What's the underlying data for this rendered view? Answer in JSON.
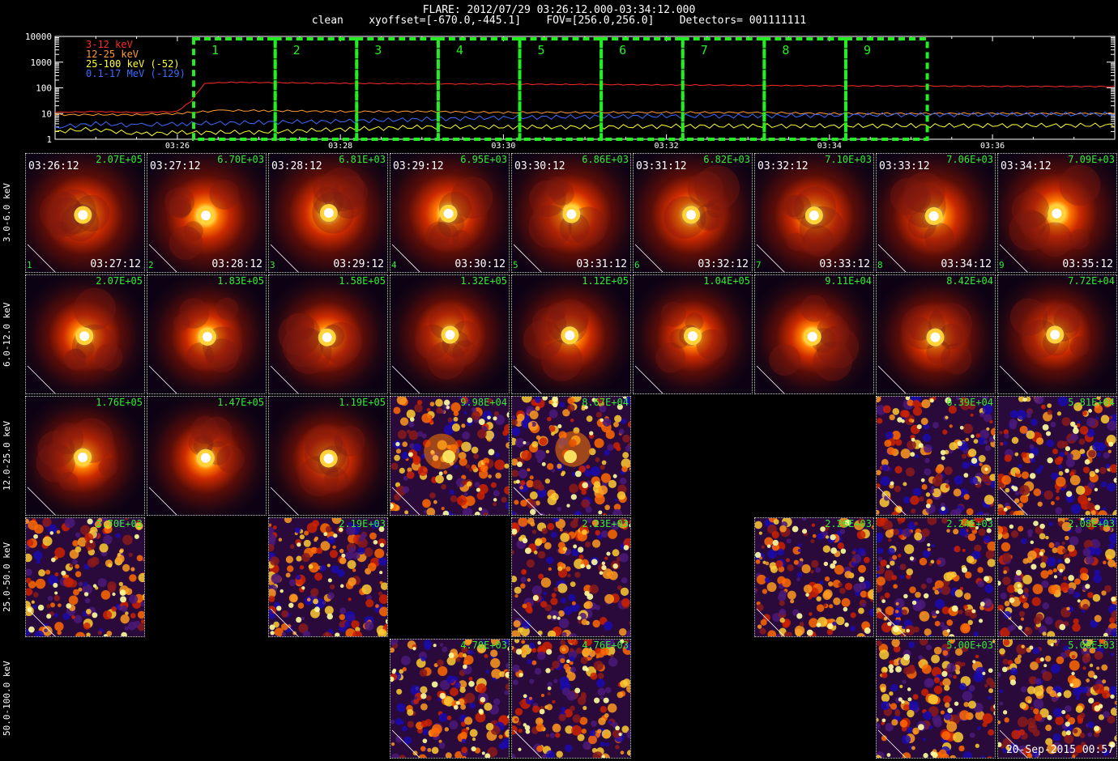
{
  "header": {
    "title": "FLARE: 2012/07/29 03:26:12.000-03:34:12.000",
    "subtitle": "clean    xyoffset=[-670.0,-445.1]    FOV=[256.0,256.0]    Detectors= 001111111"
  },
  "chart_data": [
    {
      "type": "line",
      "yscale": "log",
      "ylim": [
        1,
        10000
      ],
      "yticks": [
        "1",
        "10",
        "100",
        "1000",
        "10000"
      ],
      "xlim": [
        "03:24:30",
        "03:37:30"
      ],
      "xticks": [
        "03:26",
        "03:28",
        "03:30",
        "03:32",
        "03:34",
        "03:36"
      ],
      "series": [
        {
          "name": "3-12 keV",
          "color": "#ff2a2a",
          "x": [
            "03:24:30",
            "03:25:00",
            "03:25:30",
            "03:26:00",
            "03:26:10",
            "03:26:20",
            "03:26:40",
            "03:27:00",
            "03:28:00",
            "03:29:00",
            "03:30:00",
            "03:31:00",
            "03:32:00",
            "03:33:00",
            "03:34:00",
            "03:35:00",
            "03:36:00",
            "03:37:30"
          ],
          "y": [
            11,
            12,
            11,
            12,
            30,
            150,
            165,
            160,
            150,
            145,
            140,
            135,
            130,
            125,
            120,
            118,
            115,
            112
          ]
        },
        {
          "name": "12-25 keV",
          "color": "#ff9c33",
          "x": [
            "03:24:30",
            "03:25:30",
            "03:26:00",
            "03:26:30",
            "03:27:00",
            "03:28:00",
            "03:29:00",
            "03:30:00",
            "03:31:00",
            "03:32:00",
            "03:33:00",
            "03:34:00",
            "03:35:00",
            "03:36:00",
            "03:37:30"
          ],
          "y": [
            9,
            9,
            10,
            13,
            13,
            12,
            12,
            11,
            11,
            11,
            11,
            10,
            10,
            10,
            10
          ]
        },
        {
          "name": "25-100 keV (-52)",
          "color": "#ffff33",
          "x": [
            "03:24:30",
            "03:25:00",
            "03:25:30",
            "03:26:00",
            "03:27:00",
            "03:28:00",
            "03:29:00",
            "03:30:00",
            "03:31:00",
            "03:32:00",
            "03:33:00",
            "03:34:00",
            "03:35:00",
            "03:36:00",
            "03:37:30"
          ],
          "y": [
            2,
            2.5,
            1.6,
            1.8,
            1.9,
            2.4,
            3,
            3,
            3,
            3.2,
            3.3,
            3.3,
            3.4,
            3.4,
            3.5
          ]
        },
        {
          "name": "0.1-17 MeV (-129)",
          "color": "#3d6bff",
          "x": [
            "03:24:30",
            "03:25:00",
            "03:25:30",
            "03:26:00",
            "03:27:00",
            "03:28:00",
            "03:29:00",
            "03:30:00",
            "03:31:00",
            "03:32:00",
            "03:33:00",
            "03:34:00",
            "03:35:00",
            "03:36:00",
            "03:37:30"
          ],
          "y": [
            3,
            4,
            3.5,
            4,
            4.5,
            5,
            6,
            7,
            7.5,
            8,
            8,
            8.5,
            9,
            9,
            9.5
          ]
        }
      ],
      "intervals": [
        {
          "label": "1",
          "start": "03:26:12",
          "end": "03:27:12"
        },
        {
          "label": "2",
          "start": "03:27:12",
          "end": "03:28:12"
        },
        {
          "label": "3",
          "start": "03:28:12",
          "end": "03:29:12"
        },
        {
          "label": "4",
          "start": "03:29:12",
          "end": "03:30:12"
        },
        {
          "label": "5",
          "start": "03:30:12",
          "end": "03:31:12"
        },
        {
          "label": "6",
          "start": "03:31:12",
          "end": "03:32:12"
        },
        {
          "label": "7",
          "start": "03:32:12",
          "end": "03:33:12"
        },
        {
          "label": "8",
          "start": "03:33:12",
          "end": "03:34:12"
        },
        {
          "label": "9",
          "start": "03:34:12",
          "end": "03:35:12"
        }
      ]
    },
    {
      "type": "heatmap",
      "grid": "image cube: 5 energy bands x 9 time intervals",
      "energy_bands": [
        "3.0-6.0 keV",
        "6.0-12.0 keV",
        "12.0-25.0 keV",
        "25.0-50.0 keV",
        "50.0-100.0 keV"
      ],
      "start_times": [
        "03:26:12",
        "03:27:12",
        "03:28:12",
        "03:29:12",
        "03:30:12",
        "03:31:12",
        "03:32:12",
        "03:33:12",
        "03:34:12"
      ],
      "end_times": [
        "03:27:12",
        "03:28:12",
        "03:29:12",
        "03:30:12",
        "03:31:12",
        "03:32:12",
        "03:33:12",
        "03:34:12",
        "03:35:12"
      ],
      "interval_labels": [
        "1",
        "2",
        "3",
        "4",
        "5",
        "6",
        "7",
        "8",
        "9"
      ],
      "peaks": [
        [
          "2.07E+05",
          "6.70E+03",
          "6.81E+03",
          "6.95E+03",
          "6.86E+03",
          "6.82E+03",
          "7.10E+03",
          "7.06E+03",
          "7.09E+03"
        ],
        [
          "2.07E+05",
          "1.83E+05",
          "1.58E+05",
          "1.32E+05",
          "1.12E+05",
          "1.04E+05",
          "9.11E+04",
          "8.42E+04",
          "7.72E+04"
        ],
        [
          "1.76E+05",
          "1.47E+05",
          "1.19E+05",
          "9.98E+04",
          "8.67E+04",
          null,
          null,
          "6.39E+04",
          "5.81E+04"
        ],
        [
          "2.70E+03",
          null,
          "2.19E+03",
          null,
          "2.23E+03",
          null,
          "2.26E+03",
          "2.24E+03",
          "2.08E+03"
        ],
        [
          null,
          null,
          null,
          "4.70E+03",
          "4.76E+03",
          null,
          null,
          "5.00E+03",
          "5.00E+03"
        ]
      ],
      "image_style": [
        [
          "source",
          "source",
          "source",
          "source",
          "source",
          "source",
          "source",
          "source",
          "source"
        ],
        [
          "source",
          "source",
          "source",
          "source",
          "source",
          "source",
          "source",
          "source",
          "source"
        ],
        [
          "source",
          "source",
          "source",
          "noise",
          "noise",
          null,
          null,
          "noise",
          "noise"
        ],
        [
          "noise",
          null,
          "noise",
          null,
          "noise",
          null,
          "noise",
          "noise",
          "noise"
        ],
        [
          null,
          null,
          null,
          "noise",
          "noise",
          null,
          null,
          "noise",
          "noise"
        ]
      ]
    }
  ],
  "footer": {
    "date_stamp": "20-Sep-2015 00:57"
  }
}
